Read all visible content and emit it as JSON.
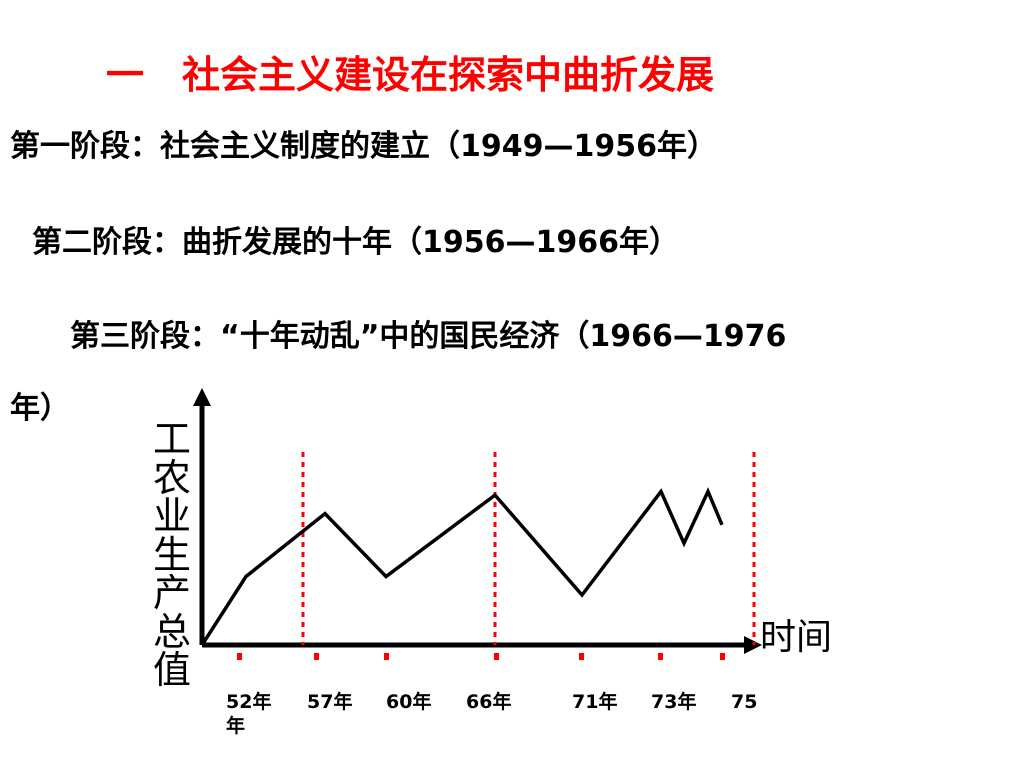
{
  "slide": {
    "title": "一　社会主义建设在探索中曲折发展",
    "stages": [
      "第一阶段：社会主义制度的建立（1949—1956年）",
      "第二阶段：曲折发展的十年（1956—1966年）",
      "第三阶段：“十年动乱”中的国民经济（1966—1976",
      "年）"
    ]
  },
  "chart_data": {
    "type": "line",
    "ylabel": "工农业生产总值",
    "xlabel": "时间",
    "x_tick_labels": [
      "52年\n年",
      "57年",
      "60年",
      "66年",
      "71年",
      "73年",
      "75"
    ],
    "dashed_separators_at": [
      "57年",
      "66年",
      "75"
    ],
    "series": [
      {
        "x": [
          "起点",
          "52年",
          "57年",
          "60年",
          "66年",
          "71年",
          "73年",
          "74年",
          "74年末",
          "75年"
        ],
        "values": [
          0,
          0.37,
          0.71,
          0.37,
          0.81,
          0.27,
          0.83,
          0.55,
          0.83,
          0.65
        ]
      }
    ],
    "colors": {
      "line": "#000000",
      "separator": "#ff0000",
      "tick_marker": "#ff0000"
    }
  }
}
